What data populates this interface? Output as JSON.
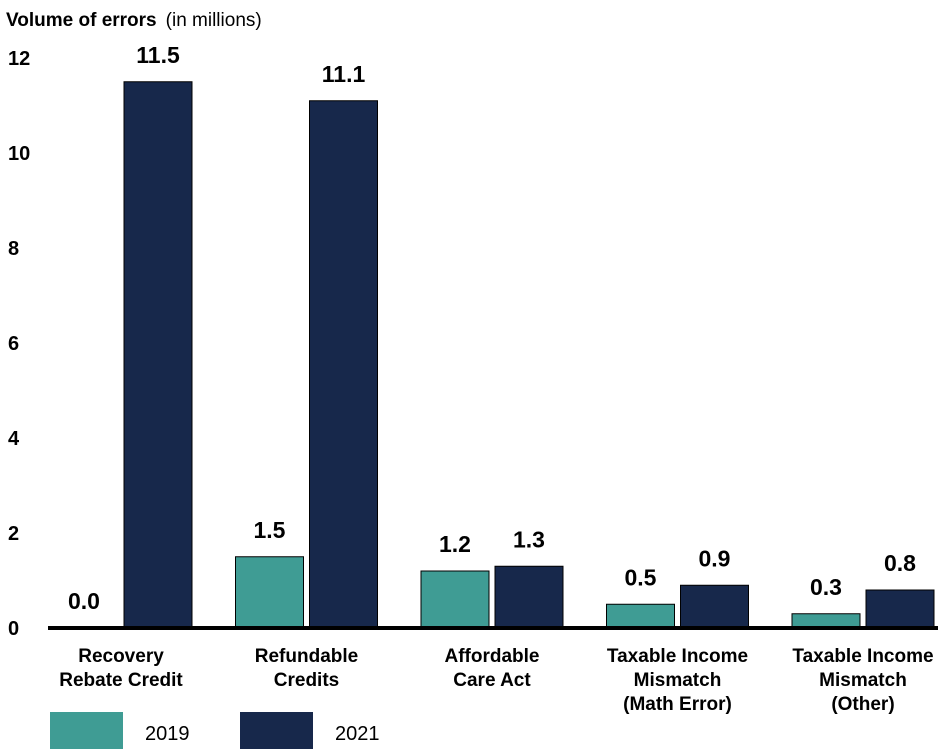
{
  "chart_data": {
    "type": "bar",
    "title_bold": "Volume of errors",
    "title_rest": "(in millions)",
    "categories": [
      [
        "Recovery",
        "Rebate Credit"
      ],
      [
        "Refundable",
        "Credits"
      ],
      [
        "Affordable",
        "Care Act"
      ],
      [
        "Taxable Income",
        "Mismatch",
        "(Math Error)"
      ],
      [
        "Taxable Income",
        "Mismatch",
        "(Other)"
      ]
    ],
    "series": [
      {
        "name": "2019",
        "color": "#3f9c94",
        "values": [
          0.0,
          1.5,
          1.2,
          0.5,
          0.3
        ],
        "labels": [
          "0.0",
          "1.5",
          "1.2",
          "0.5",
          "0.3"
        ]
      },
      {
        "name": "2021",
        "color": "#17284b",
        "values": [
          11.5,
          11.1,
          1.3,
          0.9,
          0.8
        ],
        "labels": [
          "11.5",
          "11.1",
          "1.3",
          "0.9",
          "0.8"
        ]
      }
    ],
    "yticks": [
      "0",
      "2",
      "4",
      "6",
      "8",
      "10",
      "12"
    ],
    "ylim": [
      0,
      12
    ],
    "grid": false,
    "legend_position": "bottom-left"
  }
}
